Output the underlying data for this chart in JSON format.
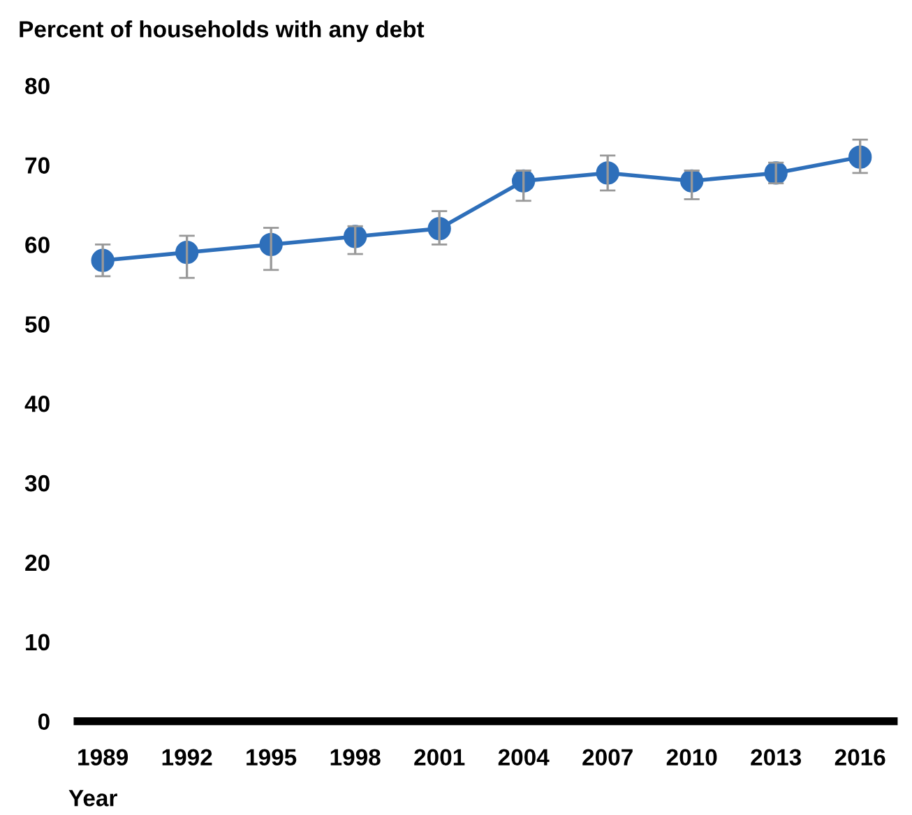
{
  "chart_data": {
    "type": "line",
    "ylabel": "Percent of households with any debt",
    "xlabel": "Year",
    "categories": [
      "1989",
      "1992",
      "1995",
      "1998",
      "2001",
      "2004",
      "2007",
      "2010",
      "2013",
      "2016"
    ],
    "series": [
      {
        "color": "#2e6fba",
        "values": [
          58,
          59,
          60,
          61,
          62,
          68,
          69,
          68,
          69,
          71
        ],
        "errors": [
          [
            56,
            60
          ],
          [
            55.8,
            61.1
          ],
          [
            56.8,
            62.1
          ],
          [
            58.8,
            62.3
          ],
          [
            60,
            64.2
          ],
          [
            65.5,
            69.3
          ],
          [
            66.8,
            71.2
          ],
          [
            65.7,
            69.3
          ],
          [
            67.7,
            70.3
          ],
          [
            69,
            73.2
          ]
        ]
      }
    ],
    "ylim": [
      0,
      80
    ],
    "yticks": [
      0,
      10,
      20,
      30,
      40,
      50,
      60,
      70,
      80
    ],
    "marker": "circle",
    "line_style": "solid",
    "grid": false,
    "legend": false
  }
}
